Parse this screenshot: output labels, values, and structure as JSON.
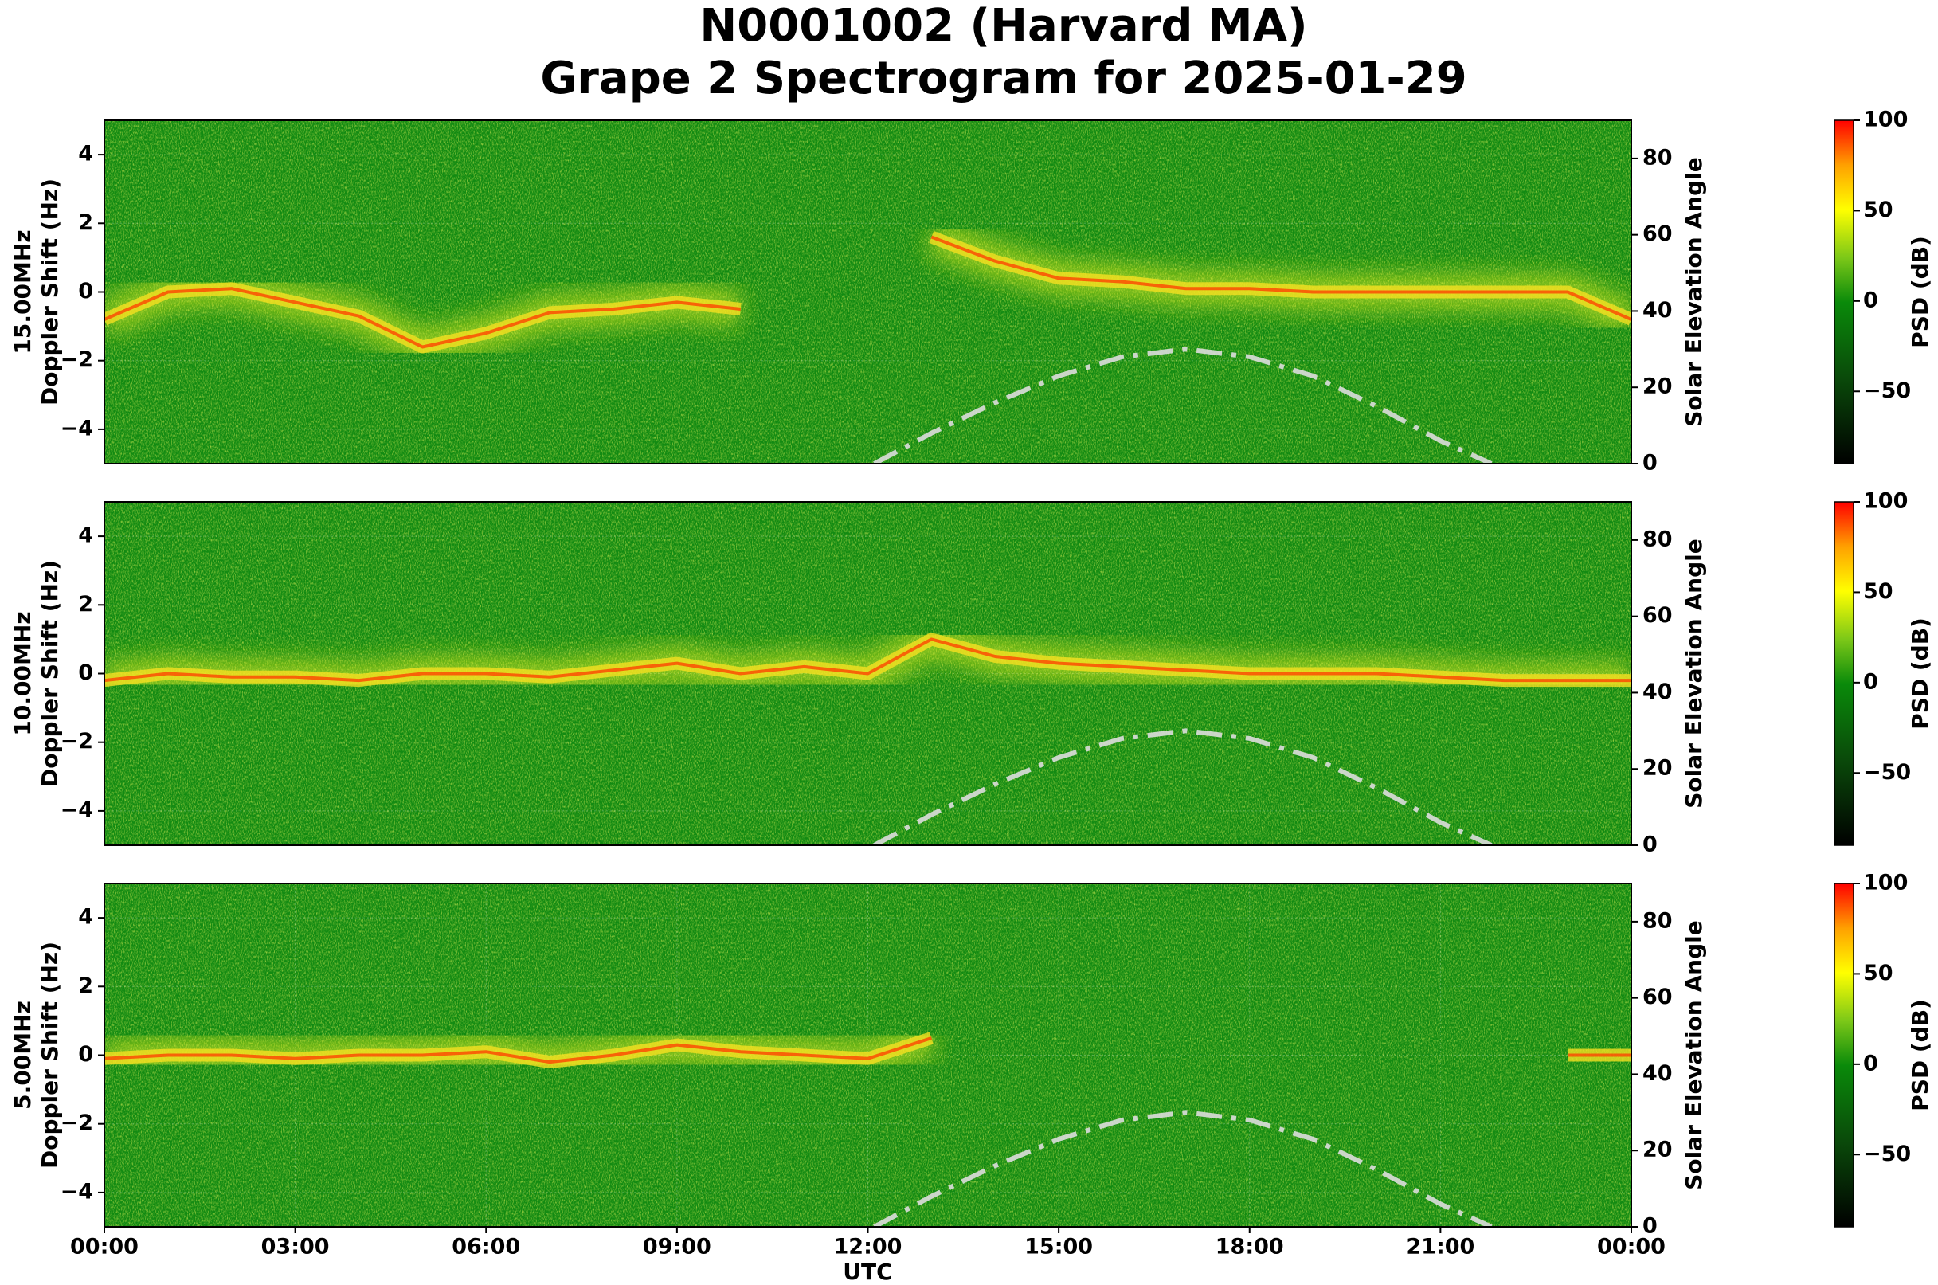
{
  "figure_title": [
    "N0001002 (Harvard MA)",
    "Grape 2 Spectrogram for 2025-01-29"
  ],
  "chart_data": [
    {
      "type": "spectrogram",
      "ylabel": [
        "15.00MHz",
        "Doppler Shift (Hz)"
      ],
      "y2label": "Solar Elevation Angle",
      "xlim": [
        0,
        24
      ],
      "ylim": [
        -5,
        5
      ],
      "yticks": [
        {
          "value": -4,
          "label": "−4"
        },
        {
          "value": -2,
          "label": "−2"
        },
        0,
        2,
        4
      ],
      "y2lim": [
        0,
        90
      ],
      "y2ticks": [
        0,
        20,
        40,
        60,
        80
      ],
      "grid": true,
      "clim": [
        -90,
        100
      ],
      "cticks": [
        {
          "value": -50,
          "label": "−50"
        },
        0,
        50,
        100
      ],
      "clabel": "PSD (dB)",
      "series": [
        {
          "color": "#ff3a00",
          "x": [
            0,
            1,
            2,
            3,
            4,
            5,
            6,
            7,
            8,
            9,
            10,
            11,
            12,
            13,
            14,
            15,
            16,
            17,
            18,
            19,
            20,
            21,
            22,
            23,
            24
          ],
          "values": [
            -0.8,
            0,
            0.1,
            -0.3,
            -0.7,
            -1.6,
            -1.2,
            -0.6,
            -0.5,
            -0.3,
            -0.5,
            null,
            null,
            1.6,
            0.9,
            0.4,
            0.3,
            0.1,
            0.1,
            0,
            0,
            0,
            0,
            0,
            -0.8
          ]
        },
        {
          "axis": "y2",
          "color": "#dddddd",
          "x": [
            12.1,
            13,
            14,
            15,
            16,
            17,
            18,
            19,
            20,
            21,
            21.8
          ],
          "values": [
            0,
            8,
            16,
            23,
            28,
            30,
            28,
            23,
            15,
            6,
            0
          ]
        }
      ]
    },
    {
      "type": "spectrogram",
      "ylabel": [
        "10.00MHz",
        "Doppler Shift (Hz)"
      ],
      "y2label": "Solar Elevation Angle",
      "xlim": [
        0,
        24
      ],
      "ylim": [
        -5,
        5
      ],
      "yticks": [
        {
          "value": -4,
          "label": "−4"
        },
        {
          "value": -2,
          "label": "−2"
        },
        0,
        2,
        4
      ],
      "y2lim": [
        0,
        90
      ],
      "y2ticks": [
        0,
        20,
        40,
        60,
        80
      ],
      "grid": true,
      "clim": [
        -90,
        100
      ],
      "cticks": [
        {
          "value": -50,
          "label": "−50"
        },
        0,
        50,
        100
      ],
      "clabel": "PSD (dB)",
      "series": [
        {
          "color": "#ff3a00",
          "x": [
            0,
            1,
            2,
            3,
            4,
            5,
            6,
            7,
            8,
            9,
            10,
            11,
            12,
            13,
            14,
            15,
            16,
            17,
            18,
            19,
            20,
            21,
            22,
            23,
            24
          ],
          "values": [
            -0.2,
            0,
            -0.1,
            -0.1,
            -0.2,
            0,
            0,
            -0.1,
            0.1,
            0.3,
            0,
            0.2,
            0,
            1.0,
            0.5,
            0.3,
            0.2,
            0.1,
            0,
            0,
            0,
            -0.1,
            -0.2,
            -0.2,
            -0.2
          ]
        },
        {
          "axis": "y2",
          "color": "#dddddd",
          "x": [
            12.1,
            13,
            14,
            15,
            16,
            17,
            18,
            19,
            20,
            21,
            21.8
          ],
          "values": [
            0,
            8,
            16,
            23,
            28,
            30,
            28,
            23,
            15,
            6,
            0
          ]
        }
      ]
    },
    {
      "type": "spectrogram",
      "ylabel": [
        "5.00MHz",
        "Doppler Shift (Hz)"
      ],
      "y2label": "Solar Elevation Angle",
      "xlabel": "UTC",
      "xlim": [
        0,
        24
      ],
      "ylim": [
        -5,
        5
      ],
      "xticks": [
        {
          "value": 0,
          "label": "00:00"
        },
        {
          "value": 3,
          "label": "03:00"
        },
        {
          "value": 6,
          "label": "06:00"
        },
        {
          "value": 9,
          "label": "09:00"
        },
        {
          "value": 12,
          "label": "12:00"
        },
        {
          "value": 15,
          "label": "15:00"
        },
        {
          "value": 18,
          "label": "18:00"
        },
        {
          "value": 21,
          "label": "21:00"
        },
        {
          "value": 24,
          "label": "00:00"
        }
      ],
      "yticks": [
        {
          "value": -4,
          "label": "−4"
        },
        {
          "value": -2,
          "label": "−2"
        },
        0,
        2,
        4
      ],
      "y2lim": [
        0,
        90
      ],
      "y2ticks": [
        0,
        20,
        40,
        60,
        80
      ],
      "grid": true,
      "clim": [
        -90,
        100
      ],
      "cticks": [
        {
          "value": -50,
          "label": "−50"
        },
        0,
        50,
        100
      ],
      "clabel": "PSD (dB)",
      "series": [
        {
          "color": "#ff3a00",
          "x": [
            0,
            1,
            2,
            3,
            4,
            5,
            6,
            7,
            8,
            9,
            10,
            11,
            12,
            13,
            14,
            15,
            16,
            17,
            18,
            19,
            20,
            21,
            22,
            23,
            24
          ],
          "values": [
            -0.1,
            0,
            0,
            -0.1,
            0,
            0,
            0.1,
            -0.2,
            0,
            0.3,
            0.1,
            0,
            -0.1,
            0.5,
            null,
            null,
            null,
            null,
            null,
            null,
            null,
            null,
            null,
            0,
            0
          ]
        },
        {
          "axis": "y2",
          "color": "#dddddd",
          "x": [
            12.1,
            13,
            14,
            15,
            16,
            17,
            18,
            19,
            20,
            21,
            21.8
          ],
          "values": [
            0,
            8,
            16,
            23,
            28,
            30,
            28,
            23,
            15,
            6,
            0
          ]
        }
      ]
    }
  ]
}
